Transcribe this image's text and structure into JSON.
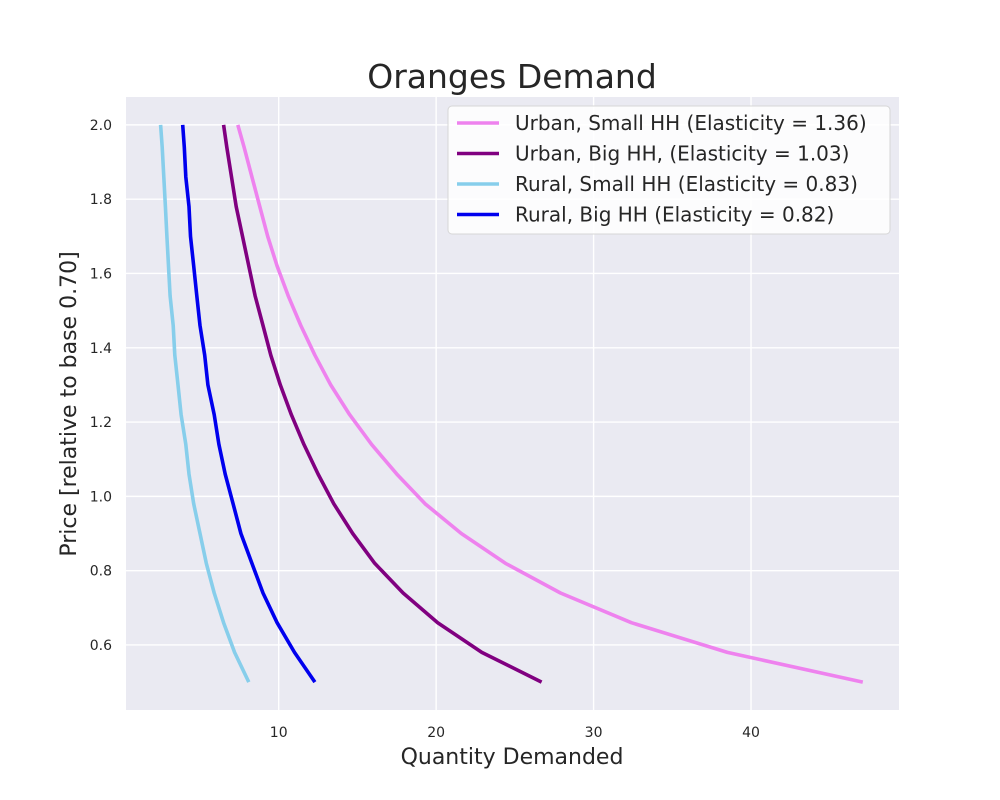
{
  "chart_data": {
    "type": "line",
    "title": "Oranges Demand",
    "xlabel": "Quantity Demanded",
    "ylabel": "Price [relative to base 0.70]",
    "xlim": [
      0.3,
      49.4
    ],
    "ylim": [
      0.425,
      2.075
    ],
    "xticks": [
      10,
      20,
      30,
      40
    ],
    "yticks": [
      0.6,
      0.8,
      1.0,
      1.2,
      1.4,
      1.6,
      1.8,
      2.0
    ],
    "ytick_labels": [
      "0.6",
      "0.8",
      "1.0",
      "1.2",
      "1.4",
      "1.6",
      "1.8",
      "2.0"
    ],
    "grid": true,
    "legend_position": "top-right",
    "series": [
      {
        "name": "Urban, Small HH (Elasticity = 1.36)",
        "color": "#ee82ee",
        "points": [
          [
            47.1,
            0.5
          ],
          [
            38.5,
            0.58
          ],
          [
            32.4,
            0.66
          ],
          [
            27.9,
            0.74
          ],
          [
            24.4,
            0.82
          ],
          [
            21.6,
            0.9
          ],
          [
            19.3,
            0.98
          ],
          [
            17.5,
            1.06
          ],
          [
            15.9,
            1.14
          ],
          [
            14.5,
            1.22
          ],
          [
            13.3,
            1.3
          ],
          [
            12.3,
            1.38
          ],
          [
            11.4,
            1.46
          ],
          [
            10.6,
            1.54
          ],
          [
            9.9,
            1.62
          ],
          [
            9.3,
            1.7
          ],
          [
            8.8,
            1.78
          ],
          [
            8.3,
            1.86
          ],
          [
            7.8,
            1.94
          ],
          [
            7.4,
            2.0
          ]
        ]
      },
      {
        "name": "Urban, Big HH, (Elasticity = 1.03)",
        "color": "#800080",
        "points": [
          [
            26.7,
            0.5
          ],
          [
            22.9,
            0.58
          ],
          [
            20.1,
            0.66
          ],
          [
            17.9,
            0.74
          ],
          [
            16.1,
            0.82
          ],
          [
            14.7,
            0.9
          ],
          [
            13.5,
            0.98
          ],
          [
            12.5,
            1.06
          ],
          [
            11.6,
            1.14
          ],
          [
            10.8,
            1.22
          ],
          [
            10.1,
            1.3
          ],
          [
            9.5,
            1.38
          ],
          [
            9.0,
            1.46
          ],
          [
            8.5,
            1.54
          ],
          [
            8.1,
            1.62
          ],
          [
            7.7,
            1.7
          ],
          [
            7.3,
            1.78
          ],
          [
            7.0,
            1.86
          ],
          [
            6.7,
            1.94
          ],
          [
            6.5,
            2.0
          ]
        ]
      },
      {
        "name": "Rural, Small HH (Elasticity = 0.83)",
        "color": "#87ceeb",
        "points": [
          [
            8.1,
            0.5
          ],
          [
            7.2,
            0.58
          ],
          [
            6.5,
            0.66
          ],
          [
            5.9,
            0.74
          ],
          [
            5.4,
            0.82
          ],
          [
            5.0,
            0.9
          ],
          [
            4.6,
            0.98
          ],
          [
            4.3,
            1.06
          ],
          [
            4.1,
            1.14
          ],
          [
            3.8,
            1.22
          ],
          [
            3.6,
            1.3
          ],
          [
            3.4,
            1.38
          ],
          [
            3.3,
            1.46
          ],
          [
            3.1,
            1.54
          ],
          [
            3.0,
            1.62
          ],
          [
            2.9,
            1.7
          ],
          [
            2.8,
            1.78
          ],
          [
            2.7,
            1.86
          ],
          [
            2.6,
            1.94
          ],
          [
            2.5,
            2.0
          ]
        ]
      },
      {
        "name": "Rural, Big HH (Elasticity = 0.82)",
        "color": "#0000ee",
        "points": [
          [
            12.3,
            0.5
          ],
          [
            11.0,
            0.58
          ],
          [
            9.9,
            0.66
          ],
          [
            9.0,
            0.74
          ],
          [
            8.3,
            0.82
          ],
          [
            7.6,
            0.9
          ],
          [
            7.1,
            0.98
          ],
          [
            6.6,
            1.06
          ],
          [
            6.2,
            1.14
          ],
          [
            5.9,
            1.22
          ],
          [
            5.5,
            1.3
          ],
          [
            5.3,
            1.38
          ],
          [
            5.0,
            1.46
          ],
          [
            4.8,
            1.54
          ],
          [
            4.6,
            1.62
          ],
          [
            4.4,
            1.7
          ],
          [
            4.3,
            1.78
          ],
          [
            4.1,
            1.86
          ],
          [
            4.0,
            1.94
          ],
          [
            3.9,
            2.0
          ]
        ]
      }
    ]
  }
}
